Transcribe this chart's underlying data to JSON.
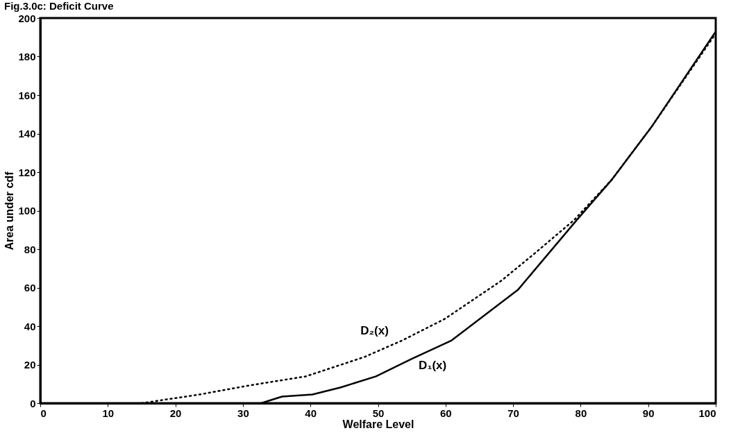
{
  "chart_data": {
    "type": "line",
    "title": "Fig.3.0c: Deficit Curve",
    "xlabel": "Welfare Level",
    "ylabel": "Area under cdf",
    "xlim": [
      0,
      100
    ],
    "xticks": [
      0,
      10,
      20,
      30,
      40,
      50,
      60,
      70,
      80,
      90,
      100
    ],
    "ylim": [
      0,
      200
    ],
    "yticks": [
      0,
      20,
      40,
      60,
      80,
      100,
      120,
      140,
      160,
      180,
      200
    ],
    "grid": false,
    "marker": "none",
    "series": [
      {
        "name": "D₁(x)",
        "color": "#000000",
        "line_style": "solid",
        "x": [
          32.7,
          35.8,
          40.3,
          44.5,
          49.7,
          55,
          60.9,
          70.7,
          79.4,
          84.6,
          90.6,
          100
        ],
        "values": [
          0,
          3.4,
          4.5,
          8.2,
          13.9,
          23,
          32.6,
          58.8,
          95,
          116,
          144,
          193
        ]
      },
      {
        "name": "D₂(x)",
        "color": "#000000",
        "line_style": "dotted",
        "x": [
          15,
          23.6,
          30.6,
          39.3,
          48,
          53.6,
          59.9,
          68.3,
          73.1,
          79,
          84.6,
          90.6,
          100
        ],
        "values": [
          0,
          4.5,
          9,
          13.9,
          24,
          32.6,
          43.8,
          63.7,
          77.5,
          95,
          116,
          144,
          192
        ]
      }
    ]
  }
}
